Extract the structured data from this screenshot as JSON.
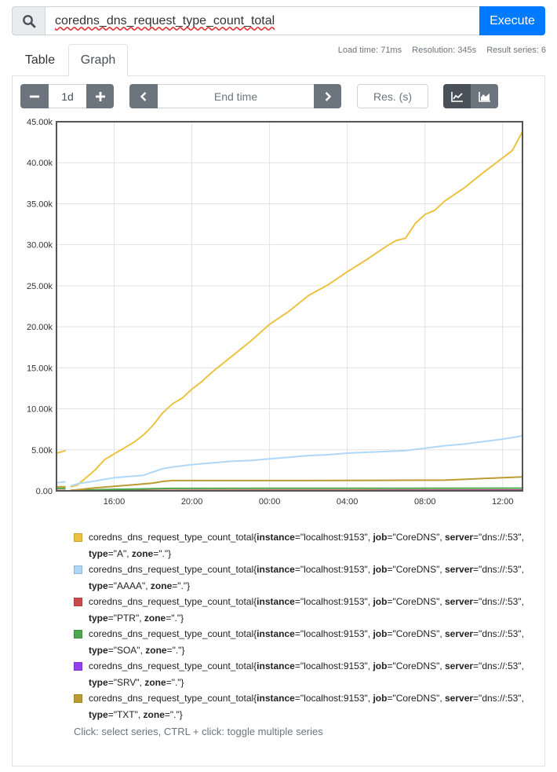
{
  "query": {
    "expression": "coredns_dns_request_type_count_total",
    "execute_label": "Execute"
  },
  "tabs": [
    {
      "label": "Table"
    },
    {
      "label": "Graph"
    }
  ],
  "stats": {
    "load_time": "Load time: 71ms",
    "resolution": "Resolution: 345s",
    "result_series": "Result series: 6"
  },
  "controls": {
    "range_value": "1d",
    "end_time_placeholder": "End time",
    "resolution_placeholder": "Res. (s)"
  },
  "icons": {
    "search": "search-icon",
    "minus": "minus-icon",
    "plus": "plus-icon",
    "prev": "chevron-left-icon",
    "next": "chevron-right-icon",
    "unstacked": "line-chart-icon",
    "stacked": "area-chart-icon"
  },
  "chart_data": {
    "type": "line",
    "x_ticks": [
      "16:00",
      "20:00",
      "00:00",
      "04:00",
      "08:00",
      "12:00"
    ],
    "x_tick_hours": [
      16,
      20,
      24,
      28,
      32,
      36
    ],
    "x_range_hours": [
      13.03,
      37.02
    ],
    "ylim": [
      0,
      45000
    ],
    "y_ticks": [
      "0.00",
      "5.00k",
      "10.00k",
      "15.00k",
      "20.00k",
      "25.00k",
      "30.00k",
      "35.00k",
      "40.00k",
      "45.00k"
    ],
    "grid": true,
    "series": [
      {
        "name": "coredns_dns_request_type_count_total",
        "color": "#edc240",
        "segments": [
          [
            [
              13.03,
              4600
            ],
            [
              13.5,
              4900
            ]
          ],
          [
            [
              13.75,
              500
            ],
            [
              14.1,
              700
            ],
            [
              14.5,
              1500
            ],
            [
              15.0,
              2500
            ],
            [
              15.5,
              3800
            ],
            [
              16.0,
              4500
            ],
            [
              16.5,
              5200
            ],
            [
              17.0,
              5900
            ],
            [
              17.5,
              6800
            ],
            [
              18.0,
              8000
            ],
            [
              18.5,
              9500
            ],
            [
              19.0,
              10600
            ],
            [
              19.5,
              11300
            ],
            [
              20.0,
              12400
            ],
            [
              20.5,
              13300
            ],
            [
              21.0,
              14400
            ],
            [
              22.0,
              16300
            ],
            [
              23.0,
              18200
            ],
            [
              24.0,
              20300
            ],
            [
              25.0,
              21900
            ],
            [
              26.0,
              23800
            ],
            [
              27.0,
              25100
            ],
            [
              28.0,
              26700
            ],
            [
              29.0,
              28200
            ],
            [
              30.0,
              29800
            ],
            [
              30.5,
              30500
            ],
            [
              31.0,
              30800
            ],
            [
              31.5,
              32600
            ],
            [
              32.0,
              33700
            ],
            [
              32.5,
              34200
            ],
            [
              33.0,
              35300
            ],
            [
              34.0,
              36900
            ],
            [
              35.0,
              38800
            ],
            [
              36.0,
              40600
            ],
            [
              36.5,
              41500
            ],
            [
              37.02,
              43800
            ]
          ]
        ]
      },
      {
        "name": "coredns_dns_request_type_count_total",
        "color": "#afd8f8",
        "segments": [
          [
            [
              13.03,
              1000
            ],
            [
              13.5,
              1100
            ]
          ],
          [
            [
              13.75,
              600
            ],
            [
              14.2,
              900
            ],
            [
              15.0,
              1200
            ],
            [
              16.0,
              1600
            ],
            [
              17.0,
              1800
            ],
            [
              17.5,
              1900
            ],
            [
              18.0,
              2300
            ],
            [
              18.5,
              2700
            ],
            [
              19.0,
              2900
            ],
            [
              20.0,
              3200
            ],
            [
              21.0,
              3400
            ],
            [
              22.0,
              3600
            ],
            [
              23.0,
              3700
            ],
            [
              24.0,
              3900
            ],
            [
              25.0,
              4100
            ],
            [
              26.0,
              4300
            ],
            [
              27.0,
              4400
            ],
            [
              28.0,
              4600
            ],
            [
              29.0,
              4700
            ],
            [
              30.0,
              4800
            ],
            [
              31.0,
              4900
            ],
            [
              32.0,
              5200
            ],
            [
              33.0,
              5500
            ],
            [
              34.0,
              5700
            ],
            [
              35.0,
              6000
            ],
            [
              36.0,
              6300
            ],
            [
              37.02,
              6700
            ]
          ]
        ]
      },
      {
        "name": "coredns_dns_request_type_count_total",
        "color": "#cb4b4b",
        "segments": [
          [
            [
              13.03,
              40
            ],
            [
              13.5,
              40
            ]
          ],
          [
            [
              13.75,
              20
            ],
            [
              16.0,
              40
            ],
            [
              20.0,
              60
            ],
            [
              24.0,
              70
            ],
            [
              28.0,
              80
            ],
            [
              32.0,
              90
            ],
            [
              37.02,
              100
            ]
          ]
        ]
      },
      {
        "name": "coredns_dns_request_type_count_total",
        "color": "#4da74d",
        "segments": [
          [
            [
              13.03,
              300
            ],
            [
              13.5,
              300
            ]
          ],
          [
            [
              13.75,
              50
            ],
            [
              15.0,
              120
            ],
            [
              16.0,
              180
            ],
            [
              17.0,
              220
            ],
            [
              18.0,
              260
            ],
            [
              19.0,
              300
            ],
            [
              24.0,
              310
            ],
            [
              30.0,
              320
            ],
            [
              37.02,
              330
            ]
          ]
        ]
      },
      {
        "name": "coredns_dns_request_type_count_total",
        "color": "#9440ed",
        "segments": [
          [
            [
              29.5,
              20
            ],
            [
              37.02,
              40
            ]
          ]
        ]
      },
      {
        "name": "coredns_dns_request_type_count_total",
        "color": "#bd9b33",
        "segments": [
          [
            [
              13.03,
              500
            ],
            [
              13.5,
              500
            ]
          ],
          [
            [
              13.75,
              50
            ],
            [
              15.0,
              350
            ],
            [
              16.0,
              550
            ],
            [
              17.0,
              750
            ],
            [
              18.0,
              950
            ],
            [
              18.5,
              1150
            ],
            [
              19.0,
              1250
            ],
            [
              22.0,
              1250
            ],
            [
              26.0,
              1250
            ],
            [
              30.0,
              1280
            ],
            [
              33.0,
              1300
            ],
            [
              34.0,
              1400
            ],
            [
              35.0,
              1500
            ],
            [
              36.0,
              1600
            ],
            [
              37.02,
              1700
            ]
          ]
        ]
      }
    ]
  },
  "legend": {
    "hint": "Click: select series, CTRL + click: toggle multiple series",
    "items": [
      {
        "color": "#edc240",
        "metric": "coredns_dns_request_type_count_total",
        "instance": "\"localhost:9153\"",
        "job": "\"CoreDNS\"",
        "server": "\"dns://:53\"",
        "type": "\"A\"",
        "zone": "\".\""
      },
      {
        "color": "#afd8f8",
        "metric": "coredns_dns_request_type_count_total",
        "instance": "\"localhost:9153\"",
        "job": "\"CoreDNS\"",
        "server": "\"dns://:53\"",
        "type": "\"AAAA\"",
        "zone": "\".\""
      },
      {
        "color": "#cb4b4b",
        "metric": "coredns_dns_request_type_count_total",
        "instance": "\"localhost:9153\"",
        "job": "\"CoreDNS\"",
        "server": "\"dns://:53\"",
        "type": "\"PTR\"",
        "zone": "\".\""
      },
      {
        "color": "#4da74d",
        "metric": "coredns_dns_request_type_count_total",
        "instance": "\"localhost:9153\"",
        "job": "\"CoreDNS\"",
        "server": "\"dns://:53\"",
        "type": "\"SOA\"",
        "zone": "\".\""
      },
      {
        "color": "#9440ed",
        "metric": "coredns_dns_request_type_count_total",
        "instance": "\"localhost:9153\"",
        "job": "\"CoreDNS\"",
        "server": "\"dns://:53\"",
        "type": "\"SRV\"",
        "zone": "\".\""
      },
      {
        "color": "#bd9b33",
        "metric": "coredns_dns_request_type_count_total",
        "instance": "\"localhost:9153\"",
        "job": "\"CoreDNS\"",
        "server": "\"dns://:53\"",
        "type": "\"TXT\"",
        "zone": "\".\""
      }
    ]
  }
}
